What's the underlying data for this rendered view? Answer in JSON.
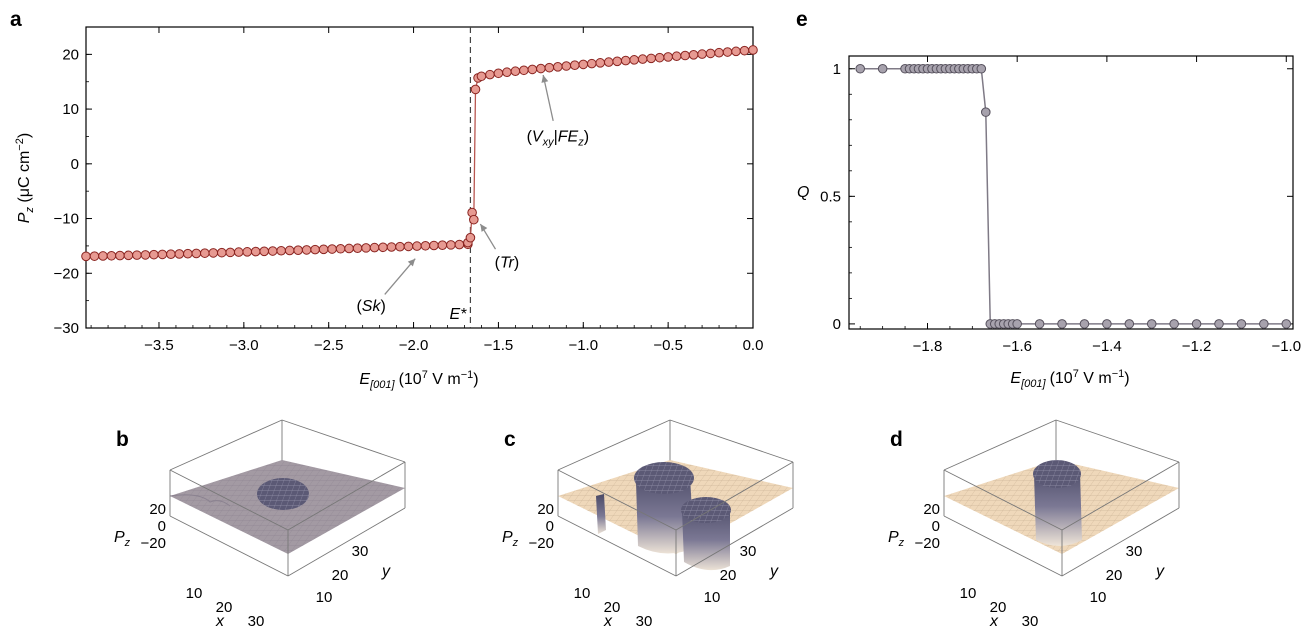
{
  "colors": {
    "series_a_fill": "#e79a92",
    "series_a_stroke": "#8a2420",
    "series_a_line": "#b85650",
    "series_e_fill": "#a7a2ad",
    "series_e_stroke": "#55505c",
    "series_e_line": "#7f7a86",
    "surface_dark": "#565470",
    "surface_light": "#ecd6b8",
    "arrow": "#8c8c8c"
  },
  "chart_data": [
    {
      "panel": "a",
      "type": "scatter",
      "xlabel_main": "E",
      "xlabel_sub": "[001]",
      "xlabel_units": "(10",
      "xlabel_exp1": "7",
      "xlabel_units2": " V m",
      "xlabel_exp2": "−1",
      "xlabel_close": ")",
      "ylabel_main": "P",
      "ylabel_sub": "z",
      "ylabel_units": " (μC cm",
      "ylabel_exp": "−2",
      "ylabel_close": ")",
      "xlim": [
        -3.93,
        0.0
      ],
      "ylim": [
        -30,
        25
      ],
      "xticks": [
        -3.5,
        -3.0,
        -2.5,
        -2.0,
        -1.5,
        -1.0,
        -0.5,
        0.0
      ],
      "xtick_labels": [
        "−3.5",
        "−3.0",
        "−2.5",
        "−2.0",
        "−1.5",
        "−1.0",
        "−0.5",
        "0.0"
      ],
      "yticks": [
        -30,
        -20,
        -10,
        0,
        10,
        20
      ],
      "ytick_labels": [
        "−30",
        "−20",
        "−10",
        "0",
        "10",
        "20"
      ],
      "vline_x": -1.665,
      "vline_label": "E*",
      "branch_low": {
        "x_start": -3.93,
        "x_end": -1.7,
        "step": 0.05,
        "y_start": -16.9,
        "y_end": -14.7
      },
      "transition_points": [
        {
          "x": -1.68,
          "y": -14.4
        },
        {
          "x": -1.665,
          "y": -13.5
        },
        {
          "x": -1.655,
          "y": -8.9
        },
        {
          "x": -1.645,
          "y": -10.2
        },
        {
          "x": -1.635,
          "y": 13.6
        },
        {
          "x": -1.62,
          "y": 15.7
        },
        {
          "x": -1.6,
          "y": 16.0
        }
      ],
      "branch_high": {
        "x_start": -1.55,
        "x_end": 0.0,
        "step": 0.05,
        "y_start": 16.3,
        "y_end": 20.8
      },
      "annotations": [
        {
          "parts": [
            [
              "(",
              ""
            ],
            [
              "V",
              "i"
            ],
            [
              "xy",
              "sub"
            ],
            [
              "|",
              ""
            ],
            [
              "FE",
              "i"
            ],
            [
              "z",
              "sub"
            ],
            [
              ")",
              ""
            ]
          ],
          "x": -1.25,
          "y": 18.0,
          "label_x": -1.15,
          "label_y": 5.0
        },
        {
          "parts": [
            [
              "(",
              ""
            ],
            [
              "Tr",
              "i"
            ],
            [
              ")",
              ""
            ]
          ],
          "x": -1.64,
          "y": -9.5,
          "label_x": -1.45,
          "label_y": -18.0
        },
        {
          "parts": [
            [
              "(",
              ""
            ],
            [
              "Sk",
              "i"
            ],
            [
              ")",
              ""
            ]
          ],
          "x": -1.95,
          "y": -16.0,
          "label_x": -2.25,
          "label_y": -26.0
        }
      ]
    },
    {
      "panel": "e",
      "type": "line",
      "ylabel": "Q",
      "xlabel_main": "E",
      "xlabel_sub": "[001]",
      "xlabel_units": "(10",
      "xlabel_exp1": "7",
      "xlabel_units2": " V m",
      "xlabel_exp2": "−1",
      "xlabel_close": ")",
      "xlim": [
        -1.975,
        -0.985
      ],
      "ylim": [
        -0.02,
        1.05
      ],
      "xticks": [
        -1.8,
        -1.6,
        -1.4,
        -1.2,
        -1.0
      ],
      "xtick_labels": [
        "−1.8",
        "−1.6",
        "−1.4",
        "−1.2",
        "−1.0"
      ],
      "yticks": [
        0,
        0.5,
        1
      ],
      "ytick_labels": [
        "0",
        "0.5",
        "1"
      ],
      "x": [
        -1.95,
        -1.9,
        -1.85,
        -1.84,
        -1.83,
        -1.82,
        -1.81,
        -1.8,
        -1.79,
        -1.78,
        -1.77,
        -1.76,
        -1.75,
        -1.74,
        -1.73,
        -1.72,
        -1.71,
        -1.7,
        -1.69,
        -1.68,
        -1.67,
        -1.66,
        -1.65,
        -1.64,
        -1.63,
        -1.62,
        -1.61,
        -1.6,
        -1.55,
        -1.5,
        -1.45,
        -1.4,
        -1.35,
        -1.3,
        -1.25,
        -1.2,
        -1.15,
        -1.1,
        -1.05,
        -1.0
      ],
      "y": [
        1,
        1,
        1,
        1,
        1,
        1,
        1,
        1,
        1,
        1,
        1,
        1,
        1,
        1,
        1,
        1,
        1,
        1,
        1,
        1,
        0.83,
        0,
        0,
        0,
        0,
        0,
        0,
        0,
        0,
        0,
        0,
        0,
        0,
        0,
        0,
        0,
        0,
        0,
        0,
        0
      ]
    }
  ],
  "surfaces": [
    {
      "panel": "b",
      "z_axis_label": "P",
      "z_axis_sub": "z",
      "z_ticks": [
        "20",
        "0",
        "−20"
      ],
      "x_axis_label": "x",
      "x_ticks": [
        "10",
        "20",
        "30"
      ],
      "y_axis_label": "y",
      "y_ticks": [
        "10",
        "20",
        "30"
      ]
    },
    {
      "panel": "c",
      "z_axis_label": "P",
      "z_axis_sub": "z",
      "z_ticks": [
        "20",
        "0",
        "−20"
      ],
      "x_axis_label": "x",
      "x_ticks": [
        "10",
        "20",
        "30"
      ],
      "y_axis_label": "y",
      "y_ticks": [
        "10",
        "20",
        "30"
      ]
    },
    {
      "panel": "d",
      "z_axis_label": "P",
      "z_axis_sub": "z",
      "z_ticks": [
        "20",
        "0",
        "−20"
      ],
      "x_axis_label": "x",
      "x_ticks": [
        "10",
        "20",
        "30"
      ],
      "y_axis_label": "y",
      "y_ticks": [
        "10",
        "20",
        "30"
      ]
    }
  ]
}
